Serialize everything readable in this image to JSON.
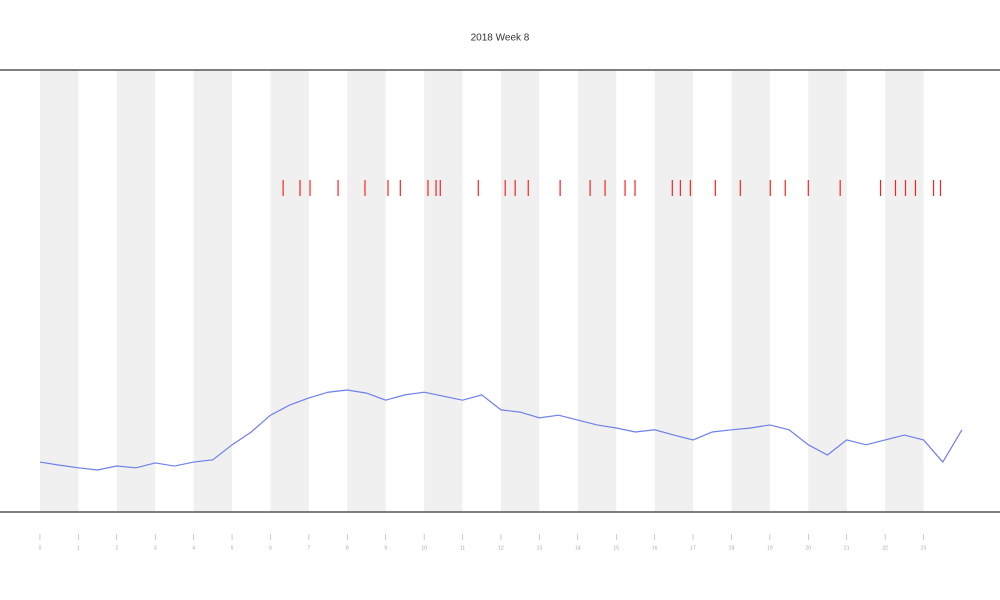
{
  "chart_data": {
    "type": "line",
    "title": "2018 Week 8",
    "x": [
      0,
      0.5,
      1,
      1.5,
      2,
      2.5,
      3,
      3.5,
      4,
      4.5,
      5,
      5.5,
      6,
      6.5,
      7,
      7.5,
      8,
      8.5,
      9,
      9.5,
      10,
      10.5,
      11,
      11.5,
      12,
      12.5,
      13,
      13.5,
      14,
      14.5,
      15,
      15.5,
      16,
      16.5,
      17,
      17.5,
      18,
      18.5,
      19,
      19.5,
      20,
      20.5,
      21,
      21.5,
      22,
      22.5,
      23,
      23.5,
      24
    ],
    "series": [
      {
        "color": "#6f7fe8",
        "values": [
          11.3,
          10.6,
          10.0,
          9.5,
          10.4,
          10.0,
          11.1,
          10.4,
          11.3,
          11.8,
          15.2,
          18.1,
          21.9,
          24.2,
          25.8,
          27.1,
          27.6,
          26.9,
          25.3,
          26.5,
          27.1,
          26.2,
          25.3,
          26.5,
          23.1,
          22.6,
          21.3,
          21.9,
          20.8,
          19.7,
          19.0,
          18.1,
          18.6,
          17.4,
          16.3,
          18.1,
          18.6,
          19.0,
          19.7,
          18.6,
          15.2,
          12.9,
          16.3,
          15.2,
          16.3,
          17.4,
          16.3,
          11.3,
          18.6
        ]
      }
    ],
    "events": {
      "color": "#ff2020",
      "x": [
        6.33,
        6.77,
        7.03,
        7.76,
        8.46,
        9.06,
        9.38,
        10.1,
        10.31,
        10.42,
        11.41,
        12.11,
        12.37,
        12.71,
        13.54,
        14.32,
        14.71,
        15.23,
        15.49,
        16.46,
        16.67,
        16.93,
        17.58,
        18.23,
        19.01,
        19.4,
        20.0,
        20.83,
        21.88,
        22.27,
        22.53,
        22.79,
        23.26,
        23.44
      ]
    },
    "xlim": [
      -1.04,
      24.99
    ],
    "ylim": [
      0,
      100
    ],
    "xticks": [
      0,
      1,
      2,
      3,
      4,
      5,
      6,
      7,
      8,
      9,
      10,
      11,
      12,
      13,
      14,
      15,
      16,
      17,
      18,
      19,
      20,
      21,
      22,
      23
    ]
  }
}
